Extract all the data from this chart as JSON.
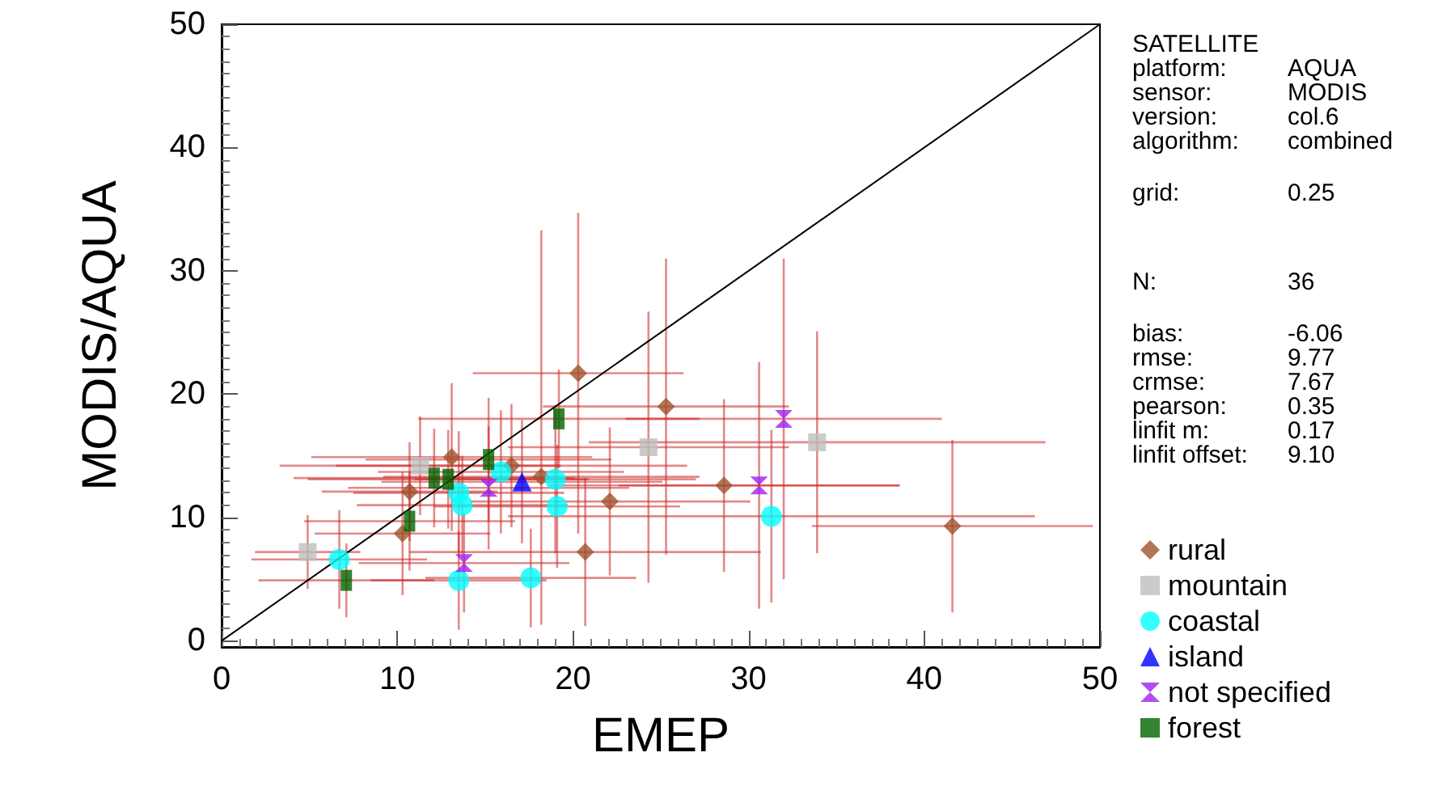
{
  "chart_data": {
    "type": "scatter",
    "xlabel": "EMEP",
    "ylabel": "MODIS/AQUA",
    "xlim": [
      0,
      50
    ],
    "xticks": [
      0,
      10,
      20,
      30,
      40,
      50
    ],
    "ylim": [
      -0.5,
      50
    ],
    "yticks": [
      0,
      10,
      20,
      30,
      40,
      50
    ],
    "grid": false,
    "legend": "bottom right",
    "line_style": "solid",
    "annotations": [
      "SATELLITE",
      "platform:",
      "AQUA",
      "sensor:",
      "MODIS",
      "version:",
      "col.6",
      "algorithm:",
      "combined",
      "grid:",
      "0.25",
      "N:",
      "36",
      "bias:",
      "-6.06",
      "rmse:",
      "9.77",
      "crmse:",
      "7.67",
      "pearson:",
      "0.35",
      "linfit m:",
      "0.17",
      "linfit offset:",
      "9.10"
    ],
    "series": [
      {
        "name": "rural",
        "color": "#a0522d",
        "marker": "diamond",
        "x": [
          10.7,
          10.3,
          13.1,
          20.3,
          16.5,
          18.2,
          22.1,
          20.7,
          25.3,
          28.6,
          41.6
        ],
        "values": [
          12.1,
          8.7,
          14.9,
          21.7,
          14.2,
          13.3,
          11.3,
          7.2,
          19.0,
          12.6,
          9.3
        ],
        "errors": [
          4,
          5,
          6,
          13,
          5,
          [
            1.3,
            33.3
          ],
          6,
          6,
          12,
          7,
          7
        ],
        "xerrors": [
          5,
          5,
          8,
          6,
          10,
          9,
          8,
          10,
          7,
          10,
          8
        ]
      },
      {
        "name": "mountain",
        "color": "#bebebe",
        "marker": "square",
        "x": [
          4.9,
          11.3,
          24.3,
          33.9
        ],
        "values": [
          7.2,
          14.2,
          15.7,
          16.1
        ],
        "errors": [
          3,
          4,
          11,
          9
        ],
        "xerrors": [
          3,
          8,
          8,
          13
        ]
      },
      {
        "name": "coastal",
        "color": "#00ffff",
        "marker": "circle",
        "x": [
          6.7,
          15.9,
          13.5,
          13.7,
          19.0,
          19.1,
          13.5,
          17.6,
          31.3
        ],
        "values": [
          6.6,
          13.7,
          12.0,
          11.0,
          13.1,
          10.9,
          4.9,
          5.1,
          10.1
        ],
        "errors": [
          4,
          5,
          5,
          4,
          6,
          5,
          4,
          4,
          7
        ],
        "xerrors": [
          5,
          7,
          6,
          6,
          8,
          7,
          5,
          6,
          15
        ]
      },
      {
        "name": "island",
        "color": "#0000ff",
        "marker": "triangle",
        "x": [
          17.1
        ],
        "values": [
          12.9
        ],
        "errors": [
          5
        ],
        "xerrors": [
          8
        ]
      },
      {
        "name": "not specified",
        "color": "#a020f0",
        "x": [
          15.2,
          13.8,
          30.6,
          32.0
        ],
        "values": [
          12.4,
          6.3,
          12.6,
          18.0
        ],
        "errors": [
          5,
          4,
          10,
          13
        ],
        "xerrors": [
          8,
          6,
          8,
          9
        ]
      },
      {
        "name": "forest",
        "color": "#006400",
        "marker": "square",
        "x": [
          7.1,
          10.7,
          12.1,
          12.9,
          15.2,
          19.2
        ],
        "values": [
          4.9,
          9.7,
          13.2,
          13.1,
          14.7,
          18.0
        ],
        "errors": [
          3,
          4,
          4,
          4,
          5,
          4
        ],
        "xerrors": [
          5,
          6,
          8,
          8,
          7,
          8
        ]
      },
      {
        "type": "line",
        "color": "#000000",
        "marker": "none",
        "x": [
          0,
          50
        ],
        "values": [
          0,
          50
        ]
      }
    ]
  }
}
